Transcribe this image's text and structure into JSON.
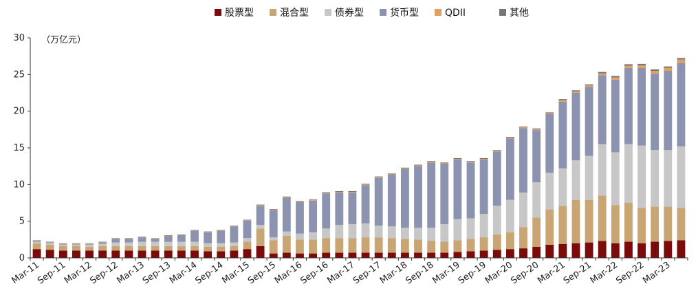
{
  "chart_data": {
    "type": "bar",
    "stacked": true,
    "unit_label": "（万亿元）",
    "ylim": [
      0,
      30
    ],
    "y_ticks": [
      0,
      5,
      10,
      15,
      20,
      25,
      30
    ],
    "grid": false,
    "legend_position": "top-center",
    "x_tick_labels": [
      "Mar-11",
      "Sep-11",
      "Mar-12",
      "Sep-12",
      "Mar-13",
      "Sep-13",
      "Mar-14",
      "Sep-14",
      "Mar-15",
      "Sep-15",
      "Mar-16",
      "Sep-16",
      "Mar-17",
      "Sep-17",
      "Mar-18",
      "Sep-18",
      "Mar-19",
      "Sep-19",
      "Mar-20",
      "Sep-20",
      "Mar-21",
      "Sep-21",
      "Mar-22",
      "Sep-22",
      "Mar-23"
    ],
    "categories": [
      "2011Q1",
      "2011Q2",
      "2011Q3",
      "2011Q4",
      "2012Q1",
      "2012Q2",
      "2012Q3",
      "2012Q4",
      "2013Q1",
      "2013Q2",
      "2013Q3",
      "2013Q4",
      "2014Q1",
      "2014Q2",
      "2014Q3",
      "2014Q4",
      "2015Q1",
      "2015Q2",
      "2015Q3",
      "2015Q4",
      "2016Q1",
      "2016Q2",
      "2016Q3",
      "2016Q4",
      "2017Q1",
      "2017Q2",
      "2017Q3",
      "2017Q4",
      "2018Q1",
      "2018Q2",
      "2018Q3",
      "2018Q4",
      "2019Q1",
      "2019Q2",
      "2019Q3",
      "2019Q4",
      "2020Q1",
      "2020Q2",
      "2020Q3",
      "2020Q4",
      "2021Q1",
      "2021Q2",
      "2021Q3",
      "2021Q4",
      "2022Q1",
      "2022Q2",
      "2022Q3",
      "2022Q4",
      "2023Q1",
      "2023Q2"
    ],
    "series": [
      {
        "name": "股票型",
        "color": "#7b0a0a",
        "values": [
          1.2,
          1.1,
          1.0,
          1.0,
          1.0,
          1.0,
          1.0,
          1.0,
          1.0,
          1.0,
          1.0,
          1.0,
          1.0,
          0.9,
          0.9,
          1.0,
          1.2,
          1.6,
          0.6,
          0.7,
          0.6,
          0.6,
          0.7,
          0.7,
          0.7,
          0.7,
          0.7,
          0.7,
          0.7,
          0.7,
          0.7,
          0.7,
          0.8,
          0.9,
          1.0,
          1.1,
          1.2,
          1.3,
          1.5,
          1.8,
          1.9,
          2.0,
          2.1,
          2.3,
          2.0,
          2.2,
          2.0,
          2.2,
          2.3,
          2.4
        ]
      },
      {
        "name": "混合型",
        "color": "#c8a573",
        "values": [
          0.8,
          0.7,
          0.6,
          0.6,
          0.5,
          0.6,
          0.6,
          0.6,
          0.6,
          0.6,
          0.6,
          0.6,
          0.6,
          0.6,
          0.6,
          0.6,
          1.0,
          2.4,
          1.8,
          2.3,
          1.9,
          1.9,
          2.0,
          2.0,
          2.0,
          2.1,
          2.1,
          2.0,
          1.9,
          1.8,
          1.6,
          1.5,
          1.6,
          1.7,
          1.8,
          2.1,
          2.3,
          2.9,
          4.0,
          4.8,
          5.2,
          5.9,
          5.8,
          6.2,
          5.2,
          5.3,
          4.8,
          4.8,
          4.7,
          4.4
        ]
      },
      {
        "name": "债券型",
        "color": "#c7c7c7",
        "values": [
          0.2,
          0.2,
          0.2,
          0.2,
          0.3,
          0.3,
          0.5,
          0.5,
          0.6,
          0.6,
          0.6,
          0.6,
          0.6,
          0.5,
          0.5,
          0.5,
          0.5,
          0.5,
          0.4,
          0.6,
          0.8,
          1.0,
          1.3,
          1.8,
          1.9,
          1.9,
          1.6,
          1.6,
          1.5,
          1.6,
          1.8,
          2.4,
          2.9,
          2.8,
          3.2,
          3.9,
          4.4,
          4.7,
          4.8,
          5.0,
          5.1,
          5.4,
          6.0,
          7.0,
          7.2,
          8.0,
          8.5,
          7.7,
          7.7,
          8.4
        ]
      },
      {
        "name": "货币型",
        "color": "#8b93b0",
        "values": [
          0.1,
          0.1,
          0.1,
          0.1,
          0.1,
          0.2,
          0.5,
          0.5,
          0.6,
          0.4,
          0.8,
          0.9,
          1.5,
          1.5,
          1.7,
          2.2,
          2.4,
          2.6,
          3.7,
          4.6,
          4.3,
          4.3,
          4.8,
          4.4,
          4.3,
          5.2,
          6.5,
          7.0,
          8.0,
          8.4,
          8.9,
          8.2,
          8.1,
          7.6,
          7.4,
          7.4,
          8.4,
          8.8,
          7.1,
          8.0,
          9.1,
          9.2,
          9.4,
          9.4,
          9.9,
          10.4,
          10.6,
          10.4,
          10.8,
          11.4
        ]
      },
      {
        "name": "QDII",
        "color": "#e0a060",
        "values": [
          0.05,
          0.05,
          0.05,
          0.05,
          0.05,
          0.05,
          0.05,
          0.05,
          0.05,
          0.05,
          0.05,
          0.05,
          0.05,
          0.05,
          0.05,
          0.05,
          0.05,
          0.08,
          0.08,
          0.08,
          0.08,
          0.08,
          0.08,
          0.1,
          0.1,
          0.1,
          0.1,
          0.1,
          0.1,
          0.1,
          0.1,
          0.1,
          0.1,
          0.1,
          0.1,
          0.1,
          0.1,
          0.1,
          0.12,
          0.12,
          0.2,
          0.2,
          0.2,
          0.25,
          0.3,
          0.3,
          0.35,
          0.4,
          0.4,
          0.45
        ]
      },
      {
        "name": "其他",
        "color": "#777777",
        "values": [
          0.05,
          0.05,
          0.05,
          0.05,
          0.05,
          0.05,
          0.05,
          0.05,
          0.05,
          0.05,
          0.05,
          0.05,
          0.05,
          0.05,
          0.05,
          0.05,
          0.05,
          0.08,
          0.08,
          0.08,
          0.08,
          0.08,
          0.08,
          0.1,
          0.1,
          0.1,
          0.1,
          0.1,
          0.1,
          0.1,
          0.1,
          0.1,
          0.1,
          0.1,
          0.1,
          0.1,
          0.1,
          0.1,
          0.12,
          0.12,
          0.15,
          0.15,
          0.15,
          0.2,
          0.2,
          0.2,
          0.2,
          0.2,
          0.2,
          0.2
        ]
      }
    ]
  }
}
